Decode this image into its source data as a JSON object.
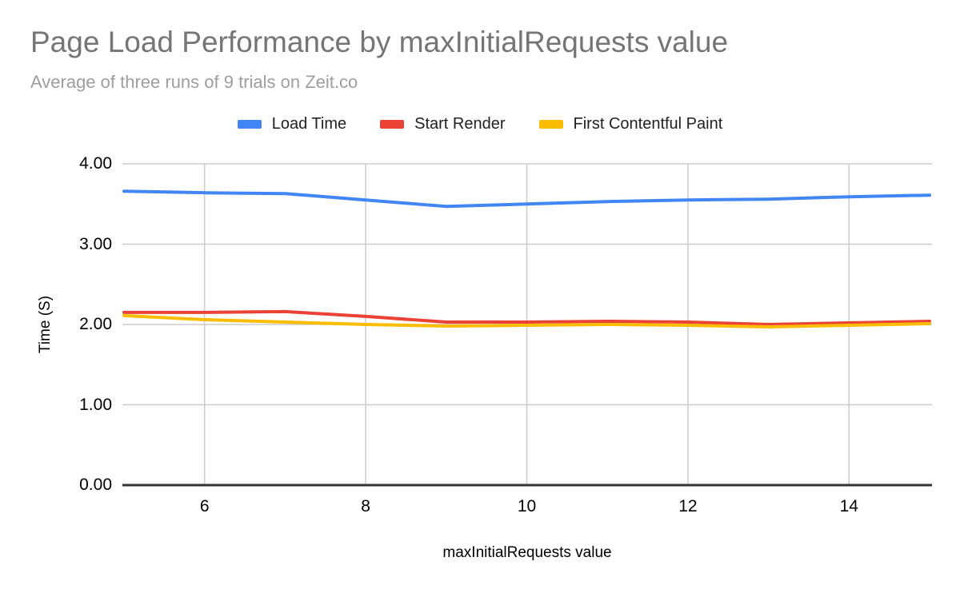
{
  "colors": {
    "title_text": "#757575",
    "subtitle_text": "#9e9e9e",
    "label_text": "#212121",
    "tick_text": "#000000",
    "gridline": "#cccccc",
    "axis_line": "#333333"
  },
  "chart_data": {
    "type": "line",
    "title": "Page Load Performance by maxInitialRequests value",
    "subtitle": "Average of three runs of 9 trials on Zeit.co",
    "xlabel": "maxInitialRequests value",
    "ylabel": "Time (S)",
    "x": [
      5,
      6,
      7,
      8,
      9,
      10,
      11,
      12,
      13,
      14,
      15
    ],
    "series": [
      {
        "name": "Load Time",
        "color": "#4285f4",
        "values": [
          3.66,
          3.64,
          3.63,
          3.55,
          3.47,
          3.5,
          3.53,
          3.55,
          3.56,
          3.59,
          3.61
        ]
      },
      {
        "name": "Start Render",
        "color": "#ea4335",
        "values": [
          2.15,
          2.15,
          2.16,
          2.1,
          2.03,
          2.03,
          2.04,
          2.03,
          2.0,
          2.02,
          2.04
        ]
      },
      {
        "name": "First Contentful Paint",
        "color": "#fbbc04",
        "values": [
          2.11,
          2.06,
          2.03,
          2.0,
          1.98,
          1.99,
          2.0,
          1.99,
          1.97,
          1.99,
          2.01
        ]
      }
    ],
    "xlim": [
      5,
      15
    ],
    "ylim": [
      0,
      4
    ],
    "xticks": [
      6,
      8,
      10,
      12,
      14
    ],
    "xtick_labels": [
      "6",
      "8",
      "10",
      "12",
      "14"
    ],
    "yticks": [
      0,
      1,
      2,
      3,
      4
    ],
    "ytick_labels": [
      "0.00",
      "1.00",
      "2.00",
      "3.00",
      "4.00"
    ],
    "grid": true,
    "legend_position": "top"
  }
}
